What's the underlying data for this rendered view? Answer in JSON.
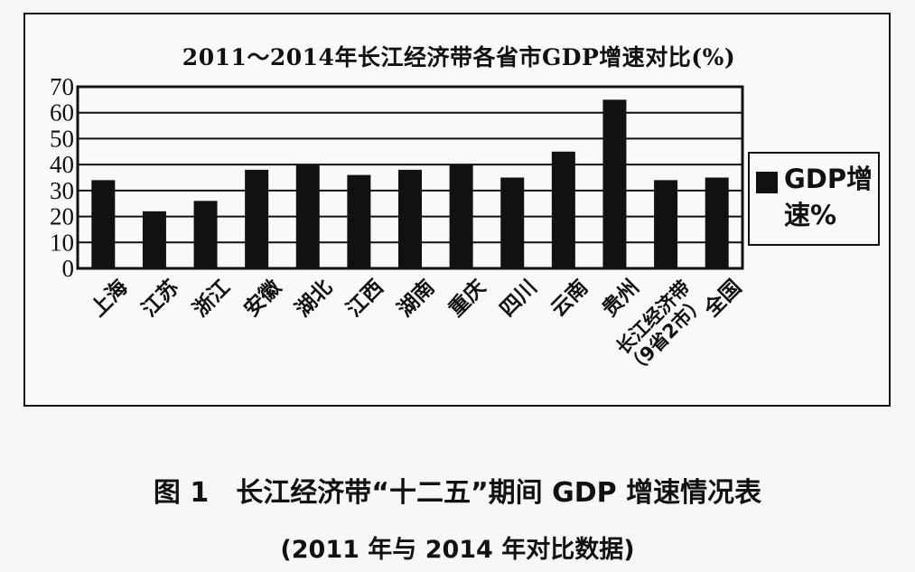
{
  "chart_data": {
    "type": "bar",
    "title": "2011～2014年长江经济带各省市GDP增速对比(%)",
    "categories": [
      "上海",
      "江苏",
      "浙江",
      "安徽",
      "湖北",
      "江西",
      "湖南",
      "重庆",
      "四川",
      "云南",
      "贵州",
      "长江经济带（9省2市）",
      "全国"
    ],
    "series": [
      {
        "name": "GDP增速%",
        "values": [
          34,
          22,
          26,
          38,
          40,
          36,
          38,
          40,
          35,
          45,
          65,
          34,
          35
        ]
      }
    ],
    "ylim": [
      0,
      70
    ],
    "yticks": [
      0,
      10,
      20,
      30,
      40,
      50,
      60,
      70
    ],
    "grid": true,
    "legend_position": "right",
    "bar_color": "#111111"
  },
  "caption": {
    "main": "图 1　长江经济带“十二五”期间 GDP 增速情况表",
    "sub": "(2011 年与 2014 年对比数据)"
  }
}
